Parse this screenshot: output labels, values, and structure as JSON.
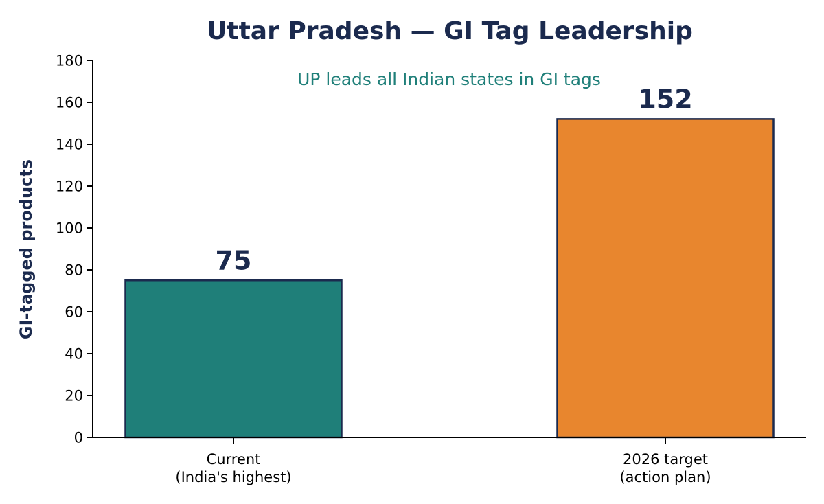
{
  "colors": {
    "title": "#1b2a4e",
    "subtitle": "#1f7f79",
    "bar_edge": "#1b2a4e",
    "axis": "#000000"
  },
  "chart_data": {
    "type": "bar",
    "title": "Uttar Pradesh — GI Tag Leadership",
    "subtitle": "UP leads all Indian states in GI tags",
    "xlabel": "",
    "ylabel": "GI-tagged products",
    "ylim": [
      0,
      180
    ],
    "yticks": [
      0,
      20,
      40,
      60,
      80,
      100,
      120,
      140,
      160,
      180
    ],
    "grid": false,
    "legend": "none",
    "categories": [
      [
        "Current",
        "(India's highest)"
      ],
      [
        "2026 target",
        "(action plan)"
      ]
    ],
    "values": [
      75,
      152
    ],
    "value_labels": [
      "75",
      "152"
    ],
    "bar_colors": [
      "#1f7f79",
      "#e8862e"
    ]
  }
}
